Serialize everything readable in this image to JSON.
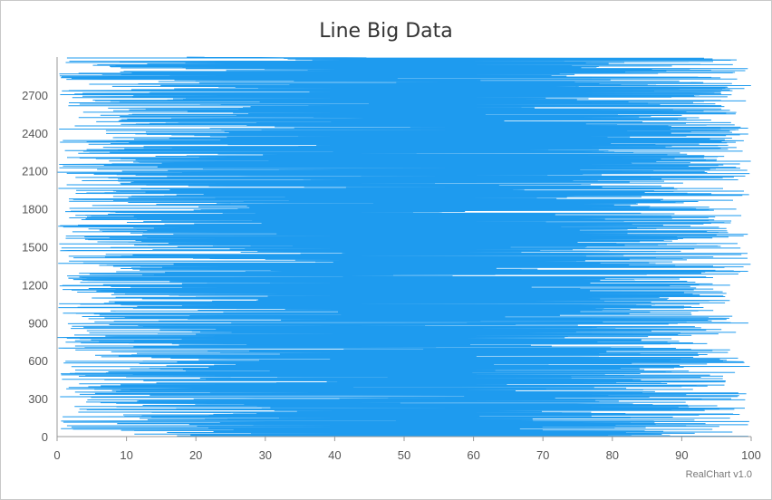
{
  "chart_data": {
    "type": "line",
    "title": "Line Big Data",
    "xlabel": "",
    "ylabel": "",
    "xlim": [
      0,
      100
    ],
    "ylim": [
      0,
      3000
    ],
    "xticks": [
      0,
      10,
      20,
      30,
      40,
      50,
      60,
      70,
      80,
      90,
      100
    ],
    "yticks": [
      0,
      300,
      600,
      900,
      1200,
      1500,
      1800,
      2100,
      2400,
      2700
    ],
    "orientation": "horizontal",
    "point_count": 3000,
    "x_distribution": "random values between 0 and 100 per point",
    "series_color": "#1e9bef",
    "grid": false
  },
  "credit": "RealChart v1.0"
}
